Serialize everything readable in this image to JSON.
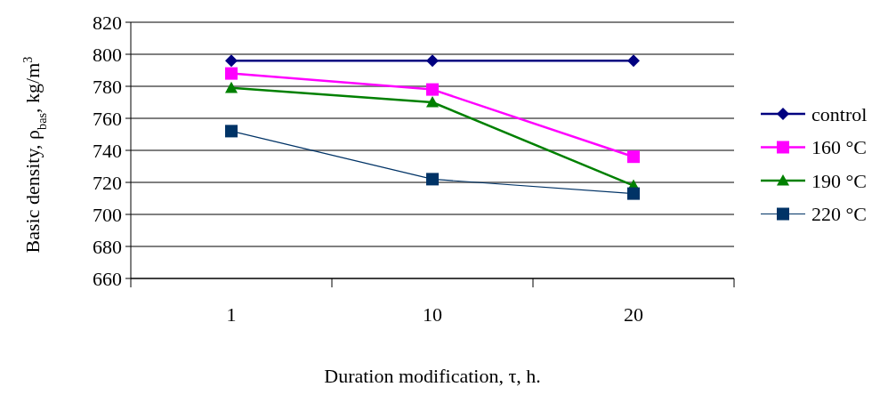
{
  "chart_data": {
    "type": "line",
    "xlabel": "Duration modification, τ, h.",
    "ylabel": "Basic density, ρ$_{bas}$, kg/m$^{3}$",
    "categories": [
      "1",
      "10",
      "20"
    ],
    "ylim": [
      660,
      820
    ],
    "yticks": [
      660,
      680,
      700,
      720,
      740,
      760,
      780,
      800,
      820
    ],
    "grid": "y",
    "legend": "right",
    "series": [
      {
        "name": "control",
        "color": "#000080",
        "marker": "diamond",
        "values": [
          796,
          796,
          796
        ]
      },
      {
        "name": "160 °C",
        "color": "#ff00ff",
        "marker": "square",
        "values": [
          788,
          778,
          736
        ]
      },
      {
        "name": "190 °C",
        "color": "#008000",
        "marker": "triangle",
        "values": [
          779,
          770,
          718
        ]
      },
      {
        "name": "220 °C",
        "color": "#003366",
        "marker": "square",
        "values": [
          752,
          722,
          713
        ]
      }
    ]
  }
}
